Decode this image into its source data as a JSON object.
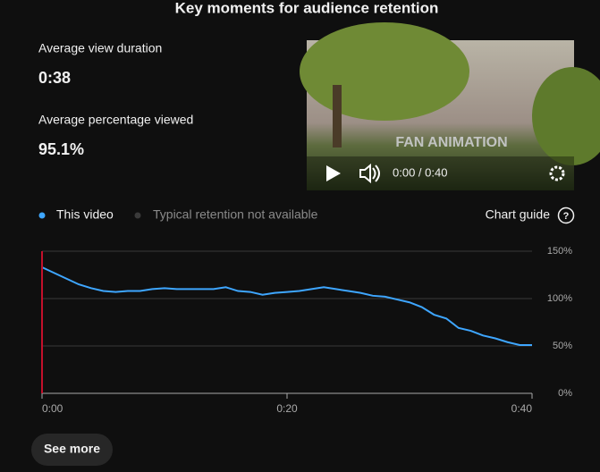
{
  "header": {
    "title": "Key moments for audience retention"
  },
  "stats": [
    {
      "label": "Average view duration",
      "value": "0:38"
    },
    {
      "label": "Average percentage viewed",
      "value": "95.1%"
    }
  ],
  "player": {
    "overlay_text": "FAN ANIMATION",
    "time": "0:00 / 0:40"
  },
  "legend_note": "Typical retention not available",
  "controls": {
    "chart_guide": "Chart guide",
    "see_more": "See more"
  },
  "chart_data": {
    "type": "line",
    "x": [
      0,
      1,
      2,
      3,
      4,
      5,
      6,
      7,
      8,
      9,
      10,
      11,
      12,
      13,
      14,
      15,
      16,
      17,
      18,
      19,
      20,
      21,
      22,
      23,
      24,
      25,
      26,
      27,
      28,
      29,
      30,
      31,
      32,
      33,
      34,
      35,
      36,
      37,
      38,
      39,
      40
    ],
    "series": [
      {
        "name": "This video",
        "color": "#3ea6ff",
        "values": [
          133,
          127,
          121,
          115,
          111,
          108,
          107,
          108,
          108,
          110,
          111,
          110,
          110,
          110,
          110,
          112,
          108,
          107,
          104,
          106,
          107,
          108,
          110,
          112,
          110,
          108,
          106,
          103,
          102,
          99,
          96,
          91,
          83,
          79,
          69,
          66,
          61,
          58,
          54,
          51,
          51
        ]
      }
    ],
    "xlim": [
      0,
      40
    ],
    "xticks": [
      {
        "value": 0,
        "label": "0:00"
      },
      {
        "value": 20,
        "label": "0:20"
      },
      {
        "value": 40,
        "label": "0:40"
      }
    ],
    "ylim": [
      0,
      150
    ],
    "yticks": [
      {
        "value": 0,
        "label": "0%"
      },
      {
        "value": 50,
        "label": "50%"
      },
      {
        "value": 100,
        "label": "100%"
      },
      {
        "value": 150,
        "label": "150%"
      }
    ],
    "grid": true
  }
}
